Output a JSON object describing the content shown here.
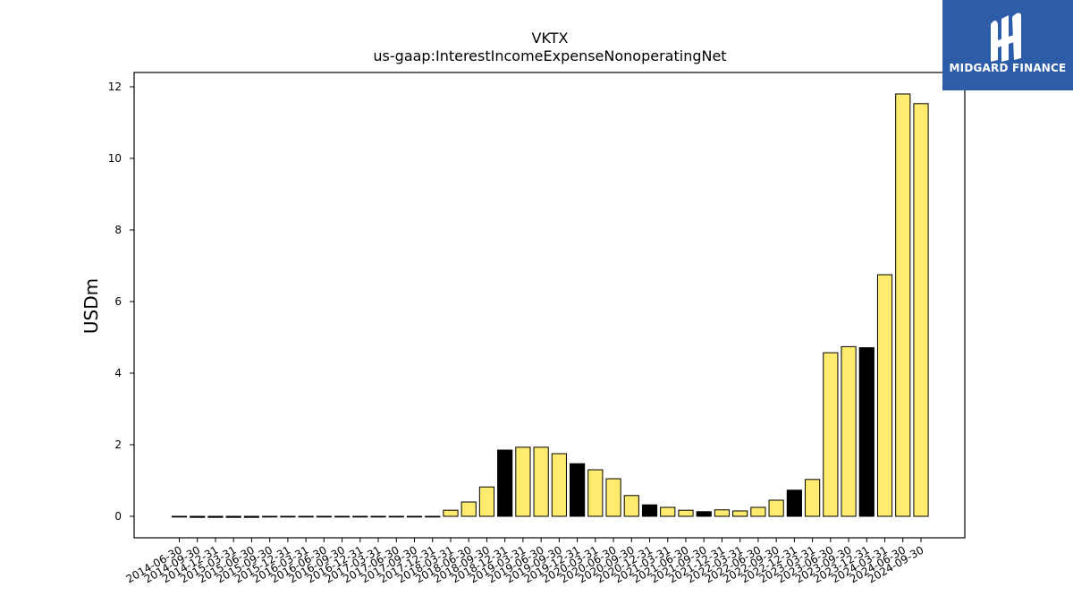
{
  "chart_data": {
    "type": "bar",
    "title": "VKTX",
    "subtitle": "us-gaap:InterestIncomeExpenseNonoperatingNet",
    "xlabel": "",
    "ylabel": "USDm",
    "ylim": [
      -0.6,
      12.4
    ],
    "yticks": [
      0,
      2,
      4,
      6,
      8,
      10,
      12
    ],
    "grid": false,
    "colors": {
      "positive_fill": "#ffec6e",
      "highlight_fill": "#000000",
      "edge": "#000000"
    },
    "categories": [
      "2014-06-30",
      "2014-09-30",
      "2014-12-31",
      "2015-03-31",
      "2015-06-30",
      "2015-09-30",
      "2015-12-31",
      "2016-03-31",
      "2016-06-30",
      "2016-09-30",
      "2016-12-31",
      "2017-03-31",
      "2017-06-30",
      "2017-09-30",
      "2017-12-31",
      "2018-03-31",
      "2018-06-30",
      "2018-09-30",
      "2018-12-31",
      "2019-03-31",
      "2019-06-30",
      "2019-09-30",
      "2019-12-31",
      "2020-03-31",
      "2020-06-30",
      "2020-09-30",
      "2020-12-31",
      "2021-03-31",
      "2021-06-30",
      "2021-09-30",
      "2021-12-31",
      "2022-03-31",
      "2022-06-30",
      "2022-09-30",
      "2022-12-31",
      "2023-03-31",
      "2023-06-30",
      "2023-09-30",
      "2023-12-31",
      "2024-03-31",
      "2024-06-30",
      "2024-09-30"
    ],
    "values": [
      0,
      -0.03,
      -0.03,
      -0.03,
      -0.03,
      0,
      0,
      0,
      0,
      0,
      0,
      0,
      0,
      0,
      0,
      0.17,
      0.4,
      0.82,
      1.85,
      1.93,
      1.93,
      1.75,
      1.47,
      1.3,
      1.05,
      0.58,
      0.32,
      0.25,
      0.17,
      0.13,
      0.18,
      0.15,
      0.25,
      0.45,
      0.73,
      1.03,
      4.57,
      4.74,
      4.71,
      6.75,
      11.8,
      11.53
    ],
    "highlight": [
      false,
      true,
      true,
      true,
      true,
      false,
      false,
      false,
      false,
      false,
      false,
      false,
      false,
      false,
      false,
      false,
      false,
      false,
      true,
      false,
      false,
      false,
      true,
      false,
      false,
      false,
      true,
      false,
      false,
      true,
      false,
      false,
      false,
      false,
      true,
      false,
      false,
      false,
      true,
      false,
      false,
      false
    ]
  },
  "logo": {
    "text": "MIDGARD FINANCE"
  }
}
